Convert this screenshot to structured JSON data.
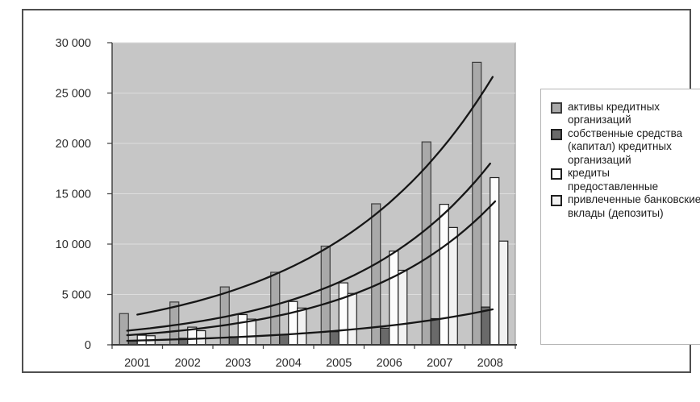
{
  "page": {
    "background": "#ffffff",
    "frame_border_color": "#4f4f4f"
  },
  "chart_data": {
    "type": "bar",
    "title": "",
    "xlabel": "",
    "ylabel": "",
    "categories": [
      "2001",
      "2002",
      "2003",
      "2004",
      "2005",
      "2006",
      "2007",
      "2008"
    ],
    "series": [
      {
        "name": "активы кредитных организаций",
        "color": "#a9a9a9",
        "border": "#3c3c3c",
        "values": [
          3100,
          4250,
          5750,
          7200,
          9800,
          14000,
          20150,
          28050
        ]
      },
      {
        "name": "собственные средства (капитал) кредитных организаций",
        "color": "#6a6a6a",
        "border": "#1f1f1f",
        "values": [
          400,
          650,
          800,
          1000,
          1300,
          1650,
          2600,
          3750
        ]
      },
      {
        "name": "кредиты предоставленные",
        "color": "#fdfdfd",
        "border": "#1f1f1f",
        "values": [
          950,
          1750,
          3000,
          4300,
          6150,
          9300,
          13950,
          16600
        ]
      },
      {
        "name": "привлеченные банковские вклады (депозиты)",
        "color": "#f2f2f2",
        "border": "#1f1f1f",
        "values": [
          900,
          1400,
          2550,
          3650,
          5100,
          7400,
          11650,
          10300
        ]
      }
    ],
    "trendlines": [
      {
        "series_index": 0,
        "year_from": 2001.0,
        "year_to": 2008.05,
        "value_from": 3000,
        "value_to": 26600
      },
      {
        "series_index": 2,
        "year_from": 2000.8,
        "year_to": 2008.0,
        "value_from": 1400,
        "value_to": 18000
      },
      {
        "series_index": 3,
        "year_from": 2000.8,
        "year_to": 2008.1,
        "value_from": 950,
        "value_to": 14250
      },
      {
        "series_index": 1,
        "year_from": 2000.8,
        "year_to": 2008.05,
        "value_from": 400,
        "value_to": 3520
      }
    ],
    "ylim": [
      0,
      30000
    ],
    "y_ticks": [
      {
        "value": 0,
        "label": "0"
      },
      {
        "value": 5000,
        "label": "5 000"
      },
      {
        "value": 10000,
        "label": "10 000"
      },
      {
        "value": 15000,
        "label": "15 000"
      },
      {
        "value": 20000,
        "label": "20 000"
      },
      {
        "value": 25000,
        "label": "25 000"
      },
      {
        "value": 30000,
        "label": "30 000"
      }
    ],
    "grid": true,
    "legend_position": "right",
    "plot_background": "#c6c6c6",
    "grid_color": "#dddddd",
    "plot_border_color": "#8f8f8f",
    "axis_color": "#3a3a3a",
    "tick_color": "#4a4a4a",
    "trend_color": "#161616",
    "label_color": "#2b2b2b"
  },
  "legend": {
    "items": [
      {
        "label": "активы кредитных организаций"
      },
      {
        "label": "собственные средства (капитал) кредитных организаций"
      },
      {
        "label": "кредиты предоставленные"
      },
      {
        "label": "привлеченные банковские вклады (депозиты)"
      }
    ]
  }
}
